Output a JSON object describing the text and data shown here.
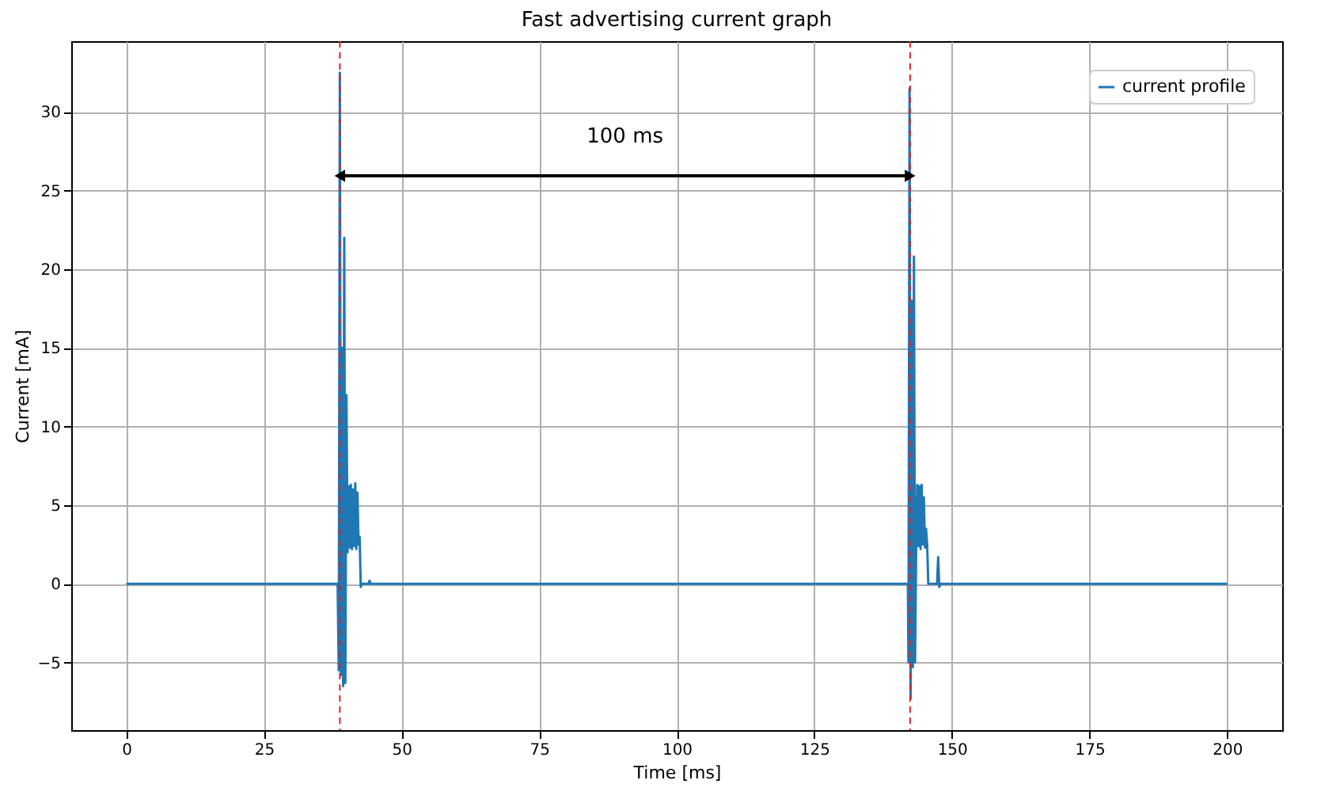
{
  "chart_data": {
    "type": "line",
    "title": "Fast advertising current graph",
    "xlabel": "Time [ms]",
    "ylabel": "Current [mA]",
    "x": [
      0,
      38.4,
      38.6,
      38.8,
      39.0,
      39.2,
      39.4,
      39.6,
      39.8,
      40.0,
      40.2,
      40.4,
      40.6,
      40.8,
      41.0,
      41.2,
      41.4,
      41.6,
      41.8,
      42.0,
      42.2,
      42.4,
      42.6,
      42.8,
      44.0,
      44.2,
      44.4,
      142.0,
      142.1,
      142.3,
      142.5,
      142.7,
      142.9,
      143.1,
      143.3,
      143.5,
      143.7,
      143.9,
      144.1,
      144.3,
      144.5,
      144.7,
      144.9,
      145.1,
      145.3,
      145.5,
      145.7,
      147.3,
      147.5,
      147.7,
      147.9,
      200
    ],
    "series": [
      {
        "name": "current profile",
        "color": "#1f77b4",
        "values": [
          0,
          0,
          -5.5,
          32.5,
          -5.8,
          15,
          -6.5,
          22,
          -6.3,
          12,
          2,
          6.2,
          2.3,
          6.3,
          2.2,
          6.0,
          2.4,
          6.4,
          2.2,
          5.8,
          2.5,
          3.0,
          -0.2,
          0,
          0,
          0.2,
          0,
          0,
          -5.0,
          31.5,
          -7.3,
          18,
          -5.3,
          20.8,
          -5.0,
          2.2,
          6.3,
          2.4,
          6.2,
          2.2,
          6.3,
          2.5,
          5.5,
          2.3,
          3.5,
          2.5,
          0,
          0,
          1.7,
          -0.2,
          0,
          0
        ]
      }
    ],
    "xlim": [
      -10,
      210
    ],
    "ylim": [
      -9.3,
      34.5
    ],
    "xticks": [
      0,
      25,
      50,
      75,
      100,
      125,
      150,
      175,
      200
    ],
    "yticks": [
      -5,
      0,
      5,
      10,
      15,
      20,
      25,
      30
    ],
    "ref_lines": [
      {
        "axis": "x",
        "value": 38.8,
        "color": "#d62728",
        "line_style": "dashed"
      },
      {
        "axis": "x",
        "value": 142.4,
        "color": "#d62728",
        "line_style": "dashed"
      }
    ],
    "annotations": [
      "100 ms"
    ],
    "grid": true,
    "legend": "top right",
    "line_style": "solid",
    "marker": "none"
  }
}
